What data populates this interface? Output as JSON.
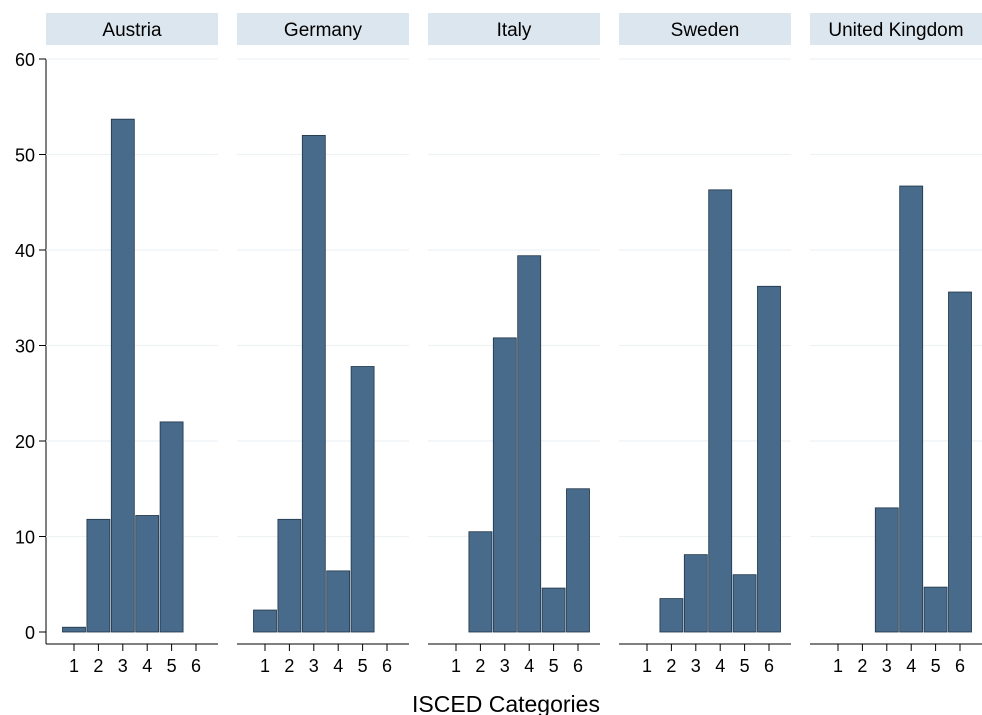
{
  "chart_data": {
    "type": "bar",
    "xlabel": "ISCED Categories",
    "ylabel": "",
    "ylim": [
      0,
      60
    ],
    "yticks": [
      0,
      10,
      20,
      30,
      40,
      50,
      60
    ],
    "categories": [
      "1",
      "2",
      "3",
      "4",
      "5",
      "6"
    ],
    "grid": true,
    "colors": {
      "bar": "#486b8b",
      "strip": "#dce6ee"
    },
    "panels": [
      {
        "name": "Austria",
        "values": [
          0.5,
          11.8,
          53.7,
          12.2,
          22.0,
          0
        ]
      },
      {
        "name": "Germany",
        "values": [
          2.3,
          11.8,
          52.0,
          6.4,
          27.8,
          0
        ]
      },
      {
        "name": "Italy",
        "values": [
          0,
          10.5,
          30.8,
          39.4,
          4.6,
          15.0
        ]
      },
      {
        "name": "Sweden",
        "values": [
          0,
          3.5,
          8.1,
          46.3,
          6.0,
          36.2
        ]
      },
      {
        "name": "United Kingdom",
        "values": [
          0,
          0,
          13.0,
          46.7,
          4.7,
          35.6
        ]
      }
    ]
  }
}
